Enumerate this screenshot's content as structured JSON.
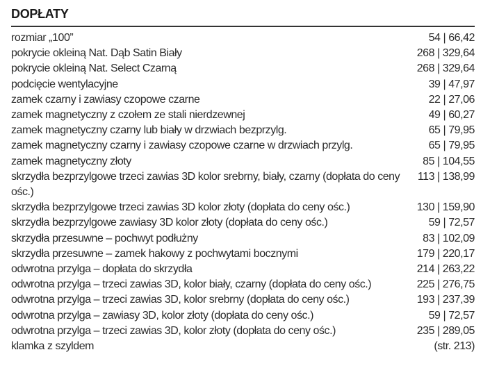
{
  "title": "DOPŁATY",
  "rows": [
    {
      "label": "rozmiar „100”",
      "price": "54 | 66,42"
    },
    {
      "label": "pokrycie okleiną Nat. Dąb Satin Biały",
      "price": "268 | 329,64"
    },
    {
      "label": "pokrycie okleiną Nat. Select Czarną",
      "price": "268 | 329,64"
    },
    {
      "label": "podcięcie wentylacyjne",
      "price": "39 | 47,97"
    },
    {
      "label": "zamek czarny i zawiasy czopowe czarne",
      "price": "22 | 27,06"
    },
    {
      "label": "zamek magnetyczny z czołem ze stali nierdzewnej",
      "price": "49 | 60,27"
    },
    {
      "label": "zamek magnetyczny czarny lub biały w drzwiach bezprzylg.",
      "price": "65 | 79,95"
    },
    {
      "label": "zamek magnetyczny czarny i zawiasy czopowe czarne w drzwiach przylg.",
      "price": "65 | 79,95"
    },
    {
      "label": "zamek magnetyczny złoty",
      "price": "85 | 104,55"
    },
    {
      "label": "skrzydła bezprzylgowe trzeci zawias 3D kolor srebrny, biały, czarny  (dopłata do ceny ośc.)",
      "price": "113 | 138,99"
    },
    {
      "label": "skrzydła bezprzylgowe trzeci zawias 3D kolor złoty (dopłata do ceny ośc.)",
      "price": "130 | 159,90"
    },
    {
      "label": "skrzydła bezprzylgowe zawiasy 3D kolor złoty (dopłata do ceny ośc.)",
      "price": "59 | 72,57"
    },
    {
      "label": "skrzydła przesuwne – pochwyt podłużny",
      "price": "83 | 102,09"
    },
    {
      "label": "skrzydła przesuwne – zamek hakowy z pochwytami bocznymi",
      "price": "179 | 220,17"
    },
    {
      "label": "odwrotna przylga – dopłata do skrzydła",
      "price": "214 | 263,22"
    },
    {
      "label": "odwrotna przylga – trzeci zawias 3D, kolor biały,  czarny (dopłata do ceny ośc.)",
      "price": "225 | 276,75"
    },
    {
      "label": "odwrotna przylga – trzeci zawias 3D, kolor srebrny  (dopłata do ceny ośc.)",
      "price": "193 | 237,39"
    },
    {
      "label": "odwrotna przylga – zawiasy 3D, kolor złoty  (dopłata do ceny ośc.)",
      "price": "59 | 72,57"
    },
    {
      "label": "odwrotna przylga – trzeci zawias 3D, kolor złoty  (dopłata do ceny ośc.)",
      "price": "235 | 289,05"
    },
    {
      "label": "klamka z szyldem",
      "price": "(str. 213)"
    }
  ]
}
